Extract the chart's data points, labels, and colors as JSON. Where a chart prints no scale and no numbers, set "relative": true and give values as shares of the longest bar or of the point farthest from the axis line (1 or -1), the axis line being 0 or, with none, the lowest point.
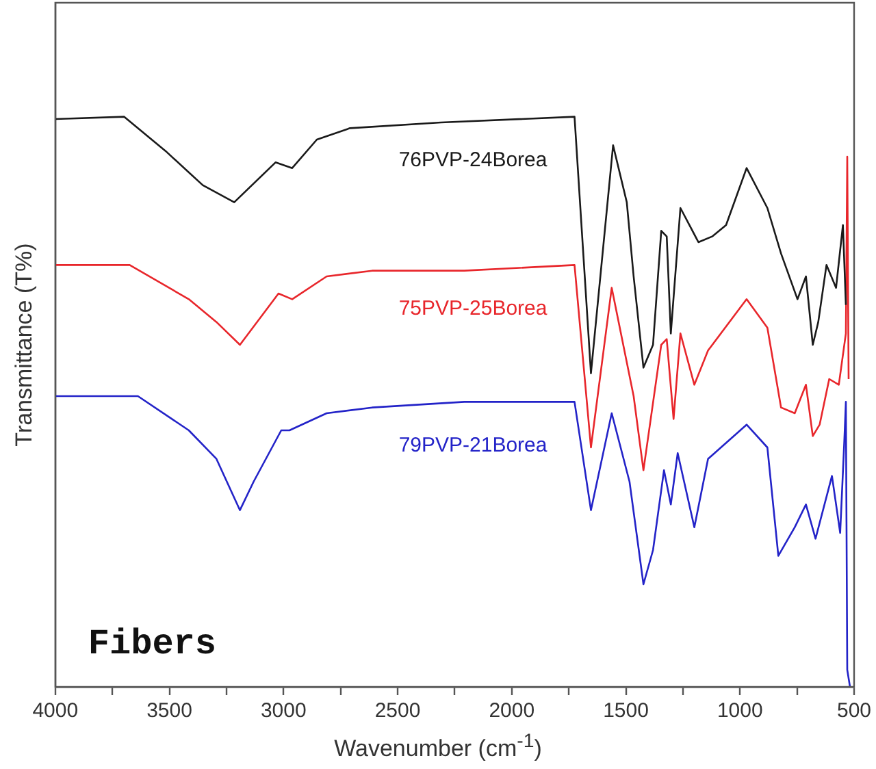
{
  "chart_data": {
    "type": "line",
    "relative": true,
    "xlabel": "Wavenumber (cm$^{-1}$)",
    "ylabel": "Transmittance (T%)",
    "xlim": [
      4000,
      500
    ],
    "xticks": [
      4000,
      {
        "value": 3750,
        "label": null
      },
      3500,
      {
        "value": 3250,
        "label": null
      },
      3000,
      {
        "value": 2750,
        "label": null
      },
      2500,
      {
        "value": 2250,
        "label": null
      },
      2000,
      {
        "value": 1750,
        "label": null
      },
      1500,
      {
        "value": 1250,
        "label": null
      },
      1000,
      {
        "value": 750,
        "label": null
      },
      500
    ],
    "grid": false,
    "legend": false,
    "marker": "none",
    "line_style": "solid",
    "annotations": [
      "Fibers"
    ],
    "series": [
      {
        "name": "76PVP-24Borea",
        "color": "#1a1a1a",
        "x": [
          4000,
          3698,
          3517,
          3354,
          3216,
          3035,
          2962,
          2854,
          2709,
          2310,
          1725,
          1653,
          1556,
          1496,
          1466,
          1423,
          1381,
          1345,
          1321,
          1303,
          1261,
          1182,
          1122,
          1061,
          971,
          880,
          820,
          748,
          711,
          681,
          657,
          621,
          579,
          549,
          536
        ],
        "values": [
          0.996,
          1.0,
          0.94,
          0.88,
          0.85,
          0.92,
          0.91,
          0.96,
          0.98,
          0.99,
          1.0,
          0.55,
          0.95,
          0.85,
          0.72,
          0.56,
          0.6,
          0.8,
          0.79,
          0.62,
          0.84,
          0.78,
          0.79,
          0.81,
          0.91,
          0.84,
          0.76,
          0.68,
          0.72,
          0.6,
          0.64,
          0.74,
          0.7,
          0.81,
          0.67
        ]
      },
      {
        "name": "75PVP-25Borea",
        "color": "#e8262b",
        "x": [
          4000,
          3674,
          3415,
          3294,
          3191,
          3022,
          2962,
          2811,
          2612,
          2208,
          1725,
          1653,
          1562,
          1466,
          1423,
          1345,
          1321,
          1291,
          1261,
          1200,
          1140,
          971,
          880,
          820,
          760,
          711,
          681,
          651,
          609,
          567,
          536,
          530,
          524
        ],
        "values": [
          0.74,
          0.74,
          0.68,
          0.64,
          0.6,
          0.69,
          0.68,
          0.72,
          0.73,
          0.73,
          0.74,
          0.42,
          0.7,
          0.51,
          0.38,
          0.6,
          0.61,
          0.47,
          0.62,
          0.53,
          0.59,
          0.68,
          0.63,
          0.49,
          0.48,
          0.53,
          0.44,
          0.46,
          0.54,
          0.53,
          0.62,
          0.93,
          0.54
        ]
      },
      {
        "name": "79PVP-21Borea",
        "color": "#2323c8",
        "x": [
          4000,
          3638,
          3415,
          3294,
          3191,
          3131,
          3010,
          2974,
          2811,
          2612,
          2208,
          1725,
          1653,
          1562,
          1484,
          1423,
          1381,
          1333,
          1303,
          1273,
          1200,
          1140,
          971,
          880,
          832,
          760,
          711,
          669,
          597,
          561,
          543,
          536,
          530,
          518
        ],
        "values": [
          0.51,
          0.51,
          0.45,
          0.4,
          0.31,
          0.36,
          0.45,
          0.45,
          0.48,
          0.49,
          0.5,
          0.5,
          0.31,
          0.48,
          0.36,
          0.18,
          0.24,
          0.38,
          0.32,
          0.41,
          0.28,
          0.4,
          0.46,
          0.42,
          0.23,
          0.28,
          0.32,
          0.26,
          0.37,
          0.27,
          0.43,
          0.5,
          0.03,
          0
        ]
      }
    ]
  }
}
